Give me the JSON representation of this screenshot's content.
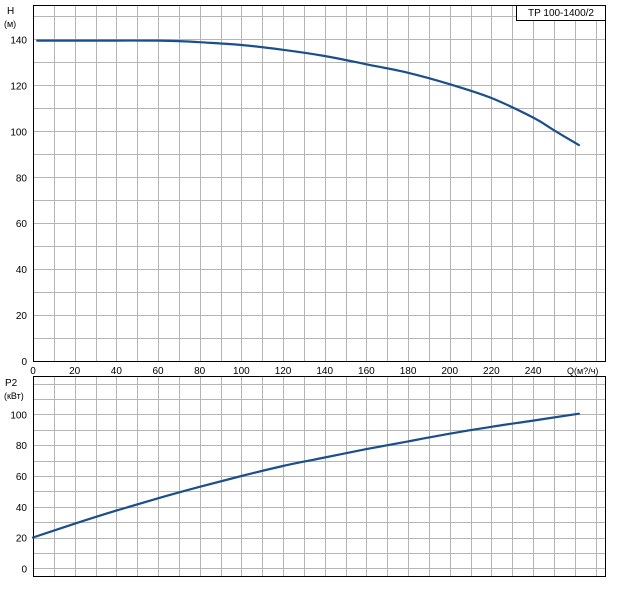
{
  "chart_data": [
    {
      "type": "line",
      "title": "TP 100-1400/2",
      "ylabel": "H",
      "yunit": "(м)",
      "xlabel": "Q(м?/ч)",
      "xlim": [
        0,
        275
      ],
      "ylim": [
        0,
        155
      ],
      "x_ticks": [
        0,
        20,
        40,
        60,
        80,
        100,
        120,
        140,
        160,
        180,
        200,
        220,
        240
      ],
      "y_ticks": [
        0,
        20,
        40,
        60,
        80,
        100,
        120,
        140
      ],
      "grid": true,
      "series": [
        {
          "x": [
            2,
            20,
            40,
            60,
            70,
            80,
            100,
            120,
            140,
            160,
            180,
            200,
            220,
            240,
            250,
            262
          ],
          "y": [
            139.5,
            139.5,
            139.5,
            139.5,
            139.3,
            138.8,
            137.6,
            135.5,
            132.8,
            129.2,
            125.5,
            120.5,
            114.5,
            106,
            100.5,
            94
          ]
        }
      ]
    },
    {
      "type": "line",
      "ylabel": "P2",
      "yunit": "(кВт)",
      "xlim": [
        0,
        275
      ],
      "ylim": [
        -5,
        125
      ],
      "y_ticks": [
        0,
        20,
        40,
        60,
        80,
        100
      ],
      "grid": true,
      "series": [
        {
          "x": [
            0,
            20,
            40,
            60,
            80,
            100,
            120,
            140,
            160,
            180,
            200,
            220,
            240,
            262
          ],
          "y": [
            20,
            29,
            37.5,
            45.5,
            53,
            60,
            66.5,
            72,
            77.5,
            82.5,
            87.5,
            92,
            96,
            100.5
          ]
        }
      ]
    }
  ]
}
